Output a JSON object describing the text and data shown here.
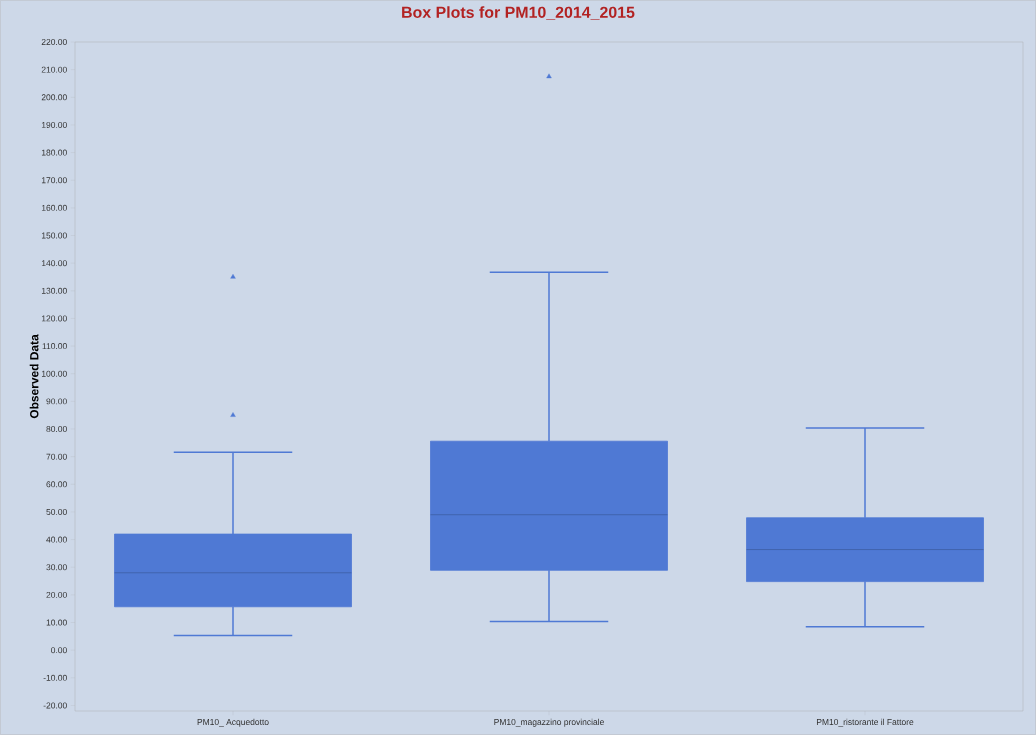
{
  "chart_data": {
    "type": "box",
    "title": "Box Plots for PM10_2014_2015",
    "ylabel": "Observed Data",
    "categories": [
      "PM10_ Acquedotto",
      "PM10_magazzino provinciale",
      "PM10_ristorante il Fattore"
    ],
    "boxes": [
      {
        "low": 5.3,
        "q1": 15.7,
        "median": 28.0,
        "q3": 42.0,
        "high": 71.6,
        "outliers": [
          85,
          135
        ]
      },
      {
        "low": 10.4,
        "q1": 28.9,
        "median": 49.0,
        "q3": 75.6,
        "high": 136.7,
        "outliers": [
          207.5
        ]
      },
      {
        "low": 8.5,
        "q1": 24.8,
        "median": 36.4,
        "q3": 47.9,
        "high": 80.4
      }
    ],
    "color": "#4f79d4",
    "marker": "triangle",
    "ylim": [
      -22,
      220
    ],
    "yticks": [
      {
        "value": -20,
        "label": "-20.00"
      },
      {
        "value": -10,
        "label": "-10.00"
      },
      {
        "value": 0,
        "label": "0.00"
      },
      {
        "value": 10,
        "label": "10.00"
      },
      {
        "value": 20,
        "label": "20.00"
      },
      {
        "value": 30,
        "label": "30.00"
      },
      {
        "value": 40,
        "label": "40.00"
      },
      {
        "value": 50,
        "label": "50.00"
      },
      {
        "value": 60,
        "label": "60.00"
      },
      {
        "value": 70,
        "label": "70.00"
      },
      {
        "value": 80,
        "label": "80.00"
      },
      {
        "value": 90,
        "label": "90.00"
      },
      {
        "value": 100,
        "label": "100.00"
      },
      {
        "value": 110,
        "label": "110.00"
      },
      {
        "value": 120,
        "label": "120.00"
      },
      {
        "value": 130,
        "label": "130.00"
      },
      {
        "value": 140,
        "label": "140.00"
      },
      {
        "value": 150,
        "label": "150.00"
      },
      {
        "value": 160,
        "label": "160.00"
      },
      {
        "value": 170,
        "label": "170.00"
      },
      {
        "value": 180,
        "label": "180.00"
      },
      {
        "value": 190,
        "label": "190.00"
      },
      {
        "value": 200,
        "label": "200.00"
      },
      {
        "value": 210,
        "label": "210.00"
      },
      {
        "value": 220,
        "label": "220.00"
      }
    ]
  }
}
